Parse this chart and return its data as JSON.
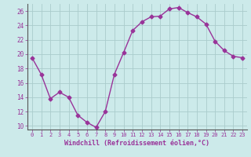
{
  "x": [
    0,
    1,
    2,
    3,
    4,
    5,
    6,
    7,
    8,
    9,
    10,
    11,
    12,
    13,
    14,
    15,
    16,
    17,
    18,
    19,
    20,
    21,
    22,
    23
  ],
  "y": [
    19.5,
    17.2,
    13.8,
    14.7,
    14.0,
    11.5,
    10.5,
    9.8,
    12.0,
    17.2,
    20.2,
    23.3,
    24.5,
    25.2,
    25.3,
    26.3,
    26.5,
    25.8,
    25.2,
    24.2,
    21.8,
    20.5,
    19.7,
    19.5
  ],
  "line_color": "#993399",
  "marker": "D",
  "markersize": 2.5,
  "linewidth": 1.0,
  "bg_color": "#cceaea",
  "grid_color": "#aacccc",
  "xlabel": "Windchill (Refroidissement éolien,°C)",
  "ylim": [
    9.5,
    27.0
  ],
  "xlim": [
    -0.5,
    23.5
  ],
  "yticks": [
    10,
    12,
    14,
    16,
    18,
    20,
    22,
    24,
    26
  ],
  "xticks": [
    0,
    1,
    2,
    3,
    4,
    5,
    6,
    7,
    8,
    9,
    10,
    11,
    12,
    13,
    14,
    15,
    16,
    17,
    18,
    19,
    20,
    21,
    22,
    23
  ],
  "tick_color": "#993399",
  "label_color": "#993399",
  "spine_color": "#993399",
  "axis_color": "#555555"
}
